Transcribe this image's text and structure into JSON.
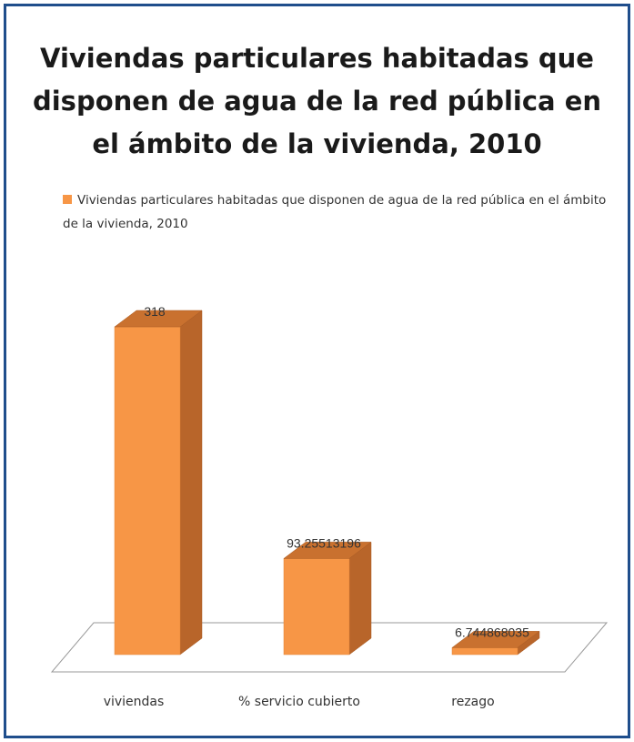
{
  "chart_data": {
    "type": "bar",
    "title": "Viviendas particulares habitadas que disponen de agua de la red pública en el ámbito de la vivienda, 2010",
    "title_lines": [
      "Viviendas particulares habitadas que",
      "disponen de agua de la red pública en",
      "el ámbito de la vivienda, 2010"
    ],
    "categories": [
      "viviendas",
      "% servicio cubierto",
      "rezago"
    ],
    "series": [
      {
        "name": "Viviendas particulares habitadas que disponen de agua de la red pública en el ámbito de la vivienda, 2010",
        "values": [
          318,
          93.25513196,
          6.744868035
        ],
        "value_labels": [
          "318",
          "93.25513196",
          "6.744868035"
        ],
        "color": "#f79646"
      }
    ],
    "legend_position": "top",
    "grid": false,
    "three_d": true
  }
}
